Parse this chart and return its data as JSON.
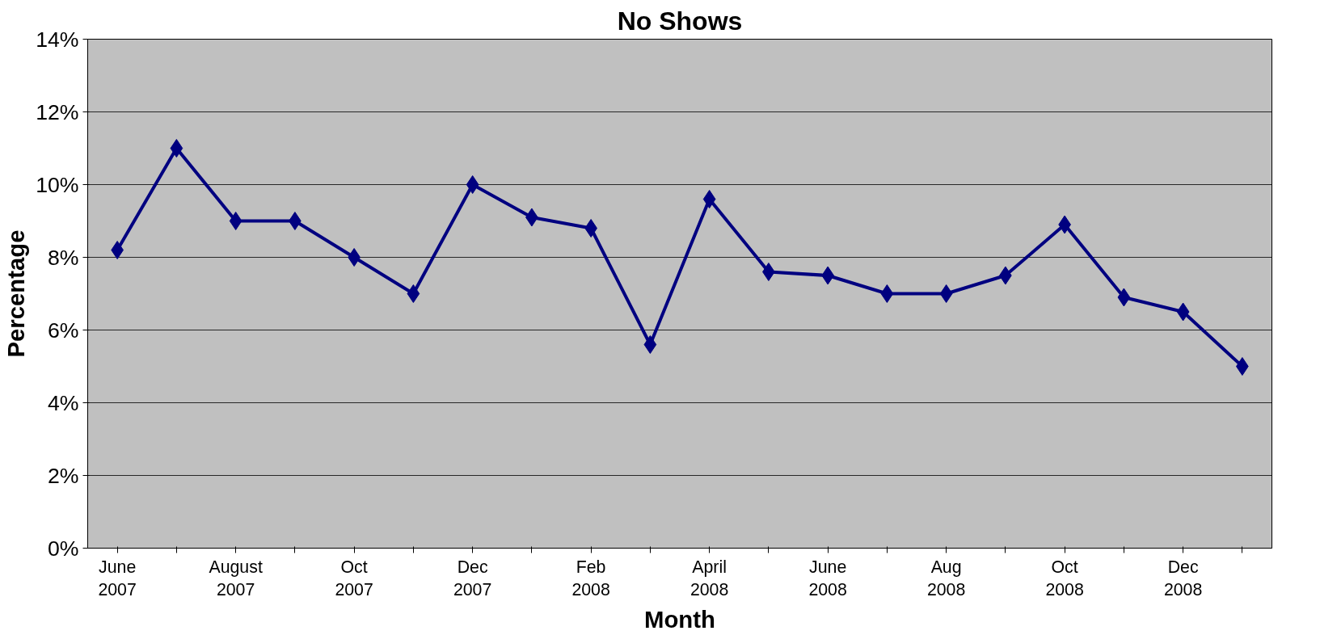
{
  "chart_data": {
    "type": "line",
    "title": "No Shows",
    "xlabel": "Month",
    "ylabel": "Percentage",
    "categories": [
      "June 2007",
      null,
      "August 2007",
      null,
      "Oct 2007",
      null,
      "Dec 2007",
      null,
      "Feb 2008",
      null,
      "April 2008",
      null,
      "June 2008",
      null,
      "Aug 2008",
      null,
      "Oct 2008",
      null,
      "Dec 2008",
      null
    ],
    "series": [
      {
        "color": "#000080",
        "values": [
          8.2,
          11,
          9,
          9,
          8,
          7,
          10,
          9.1,
          8.8,
          5.6,
          9.6,
          7.6,
          7.5,
          7,
          7,
          7.5,
          8.9,
          6.9,
          6.5,
          5
        ]
      }
    ],
    "ylim": [
      0,
      14
    ],
    "yticks": [
      {
        "value": 0,
        "label": "0%"
      },
      {
        "value": 2,
        "label": "2%"
      },
      {
        "value": 4,
        "label": "4%"
      },
      {
        "value": 6,
        "label": "6%"
      },
      {
        "value": 8,
        "label": "8%"
      },
      {
        "value": 10,
        "label": "10%"
      },
      {
        "value": 12,
        "label": "12%"
      },
      {
        "value": 14,
        "label": "14%"
      }
    ],
    "grid": "y",
    "marker": "diamond",
    "line_style": "solid"
  }
}
